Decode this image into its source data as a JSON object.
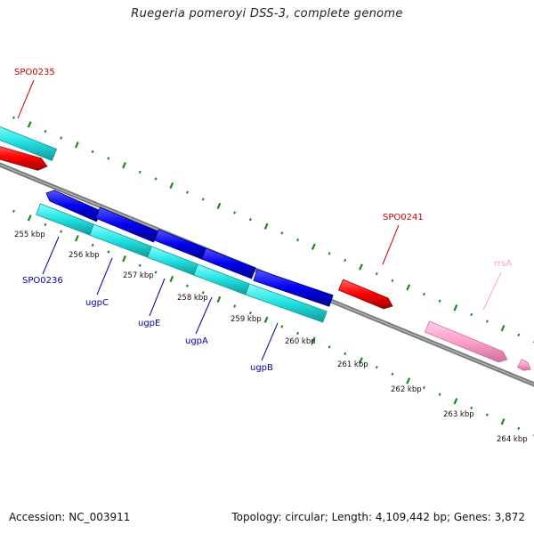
{
  "title": "Ruegeria pomeroyi DSS-3, complete genome",
  "footer": {
    "accession": "Accession: NC_003911",
    "summary": "Topology: circular; Length: 4,109,442 bp; Genes: 3,872"
  },
  "colors": {
    "backbone": "#7a7a7a",
    "tick": "#1a8a1a",
    "red_gene": "#ff0000",
    "blue_gene": "#0000ee",
    "cyan_gene": "#22e0e0",
    "pink_gene": "#ff9fcc"
  },
  "ticks": [
    "255 kbp",
    "256 kbp",
    "257 kbp",
    "258 kbp",
    "259 kbp",
    "260 kbp",
    "261 kbp",
    "262 kbp",
    "263 kbp",
    "264 kbp"
  ],
  "gene_labels": [
    {
      "id": "SPO0235",
      "text": "SPO0235",
      "color": "#cc0000"
    },
    {
      "id": "SPO0236",
      "text": "SPO0236",
      "color": "#0000aa"
    },
    {
      "id": "ugpC",
      "text": "ugpC",
      "color": "#0000aa"
    },
    {
      "id": "ugpE",
      "text": "ugpE",
      "color": "#0000aa"
    },
    {
      "id": "ugpA",
      "text": "ugpA",
      "color": "#0000aa"
    },
    {
      "id": "ugpB",
      "text": "ugpB",
      "color": "#0000aa"
    },
    {
      "id": "SPO0241",
      "text": "SPO0241",
      "color": "#cc0000"
    },
    {
      "id": "rrsA",
      "text": "rrsA",
      "color": "#ff9fcc"
    }
  ]
}
